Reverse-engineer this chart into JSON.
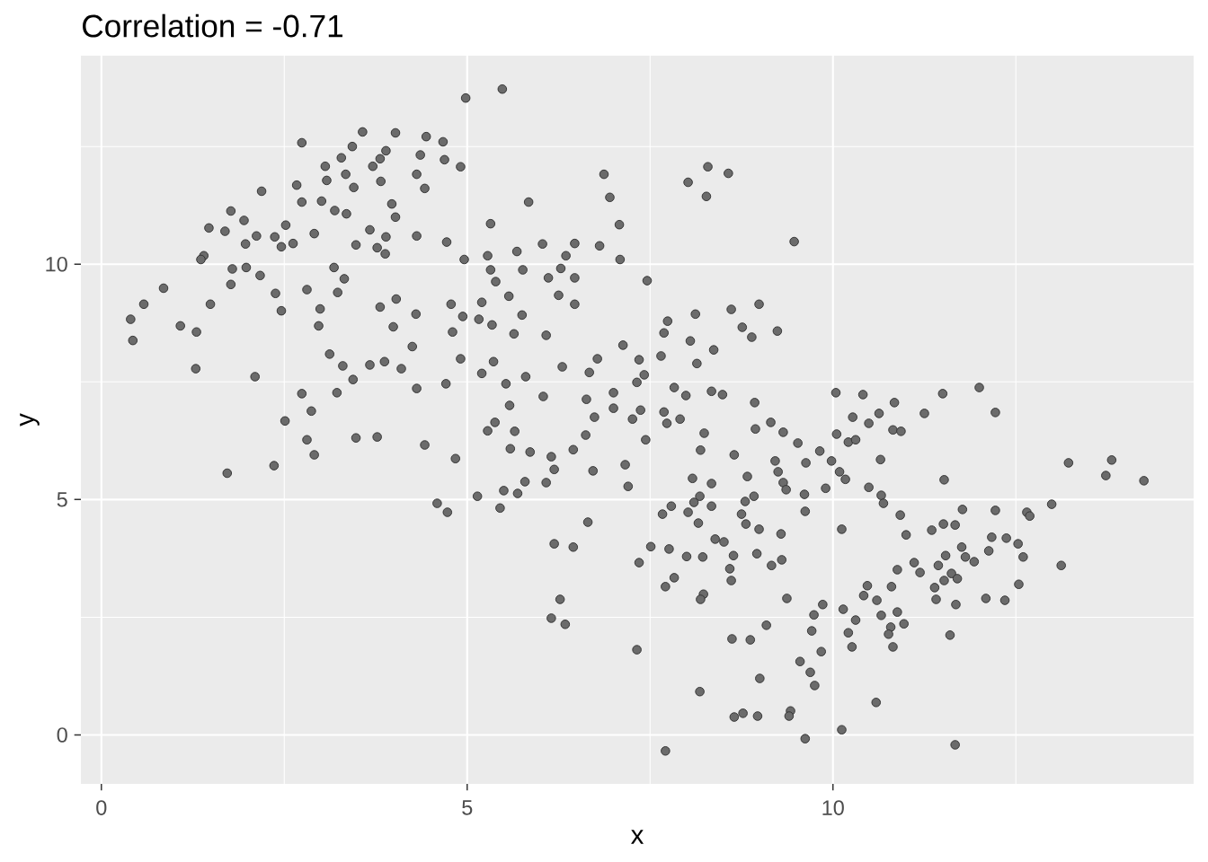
{
  "chart_data": {
    "type": "scatter",
    "title": "Correlation =  -0.71",
    "xlabel": "x",
    "ylabel": "y",
    "color": "#6b6b6b",
    "marker": "circle",
    "grid": true,
    "xlim": [
      -0.28,
      14.93
    ],
    "ylim": [
      -1.04,
      14.43
    ],
    "xticks": [
      0,
      5,
      10
    ],
    "yticks": [
      0,
      5,
      10
    ],
    "x": [
      2.74,
      3.57,
      4.02,
      4.44,
      4.67,
      3.43,
      3.89,
      4.36,
      3.28,
      3.81,
      4.69,
      3.06,
      3.71,
      3.34,
      4.31,
      3.08,
      3.82,
      2.67,
      3.45,
      4.42,
      2.19,
      3.01,
      2.74,
      3.97,
      3.19,
      3.35,
      1.77,
      4.02,
      1.95,
      2.52,
      1.47,
      1.69,
      2.91,
      3.67,
      2.12,
      2.37,
      4.31,
      3.89,
      1.97,
      4.72,
      2.62,
      3.48,
      3.77,
      2.46,
      3.88,
      1.4,
      1.36,
      3.18,
      1.79,
      1.98,
      2.17,
      3.32,
      0.85,
      1.77,
      2.81,
      3.23,
      2.38,
      0.58,
      1.49,
      4.03,
      4.78,
      3.81,
      2.46,
      2.99,
      4.3,
      0.4,
      1.08,
      2.97,
      3.99,
      4.8,
      1.3,
      0.43,
      4.25,
      3.12,
      3.3,
      3.67,
      3.87,
      4.1,
      1.29,
      2.1,
      3.44,
      4.71,
      4.31,
      2.74,
      3.22,
      2.87,
      2.51,
      4.98,
      5.48,
      4.91,
      6.87,
      8.02,
      8.29,
      8.57,
      8.27,
      5.84,
      6.95,
      5.32,
      7.08,
      9.47,
      5.68,
      6.03,
      6.47,
      6.81,
      5.28,
      6.35,
      7.09,
      4.96,
      5.32,
      5.76,
      6.28,
      5.39,
      6.11,
      6.47,
      7.46,
      6.25,
      5.57,
      5.2,
      6.47,
      8.99,
      8.12,
      8.61,
      4.94,
      5.16,
      5.75,
      7.74,
      5.34,
      5.64,
      6.08,
      7.69,
      8.76,
      9.24,
      8.89,
      8.05,
      7.13,
      8.37,
      4.91,
      5.36,
      6.78,
      7.35,
      7.65,
      8.14,
      6.3,
      6.67,
      7.42,
      5.2,
      5.8,
      5.53,
      6.04,
      6.63,
      7.0,
      7.32,
      7.83,
      7.99,
      8.34,
      8.49,
      8.93,
      5.58,
      7.0,
      7.69,
      7.91,
      6.74,
      7.26,
      5.38,
      9.15,
      7.37,
      10.04,
      10.41,
      10.84,
      11.5,
      12.0,
      10.27,
      10.63,
      11.25,
      12.22,
      2.81,
      2.91,
      3.48,
      3.77,
      4.42,
      4.84,
      1.72,
      2.36,
      4.59,
      4.73,
      5.28,
      5.65,
      5.59,
      5.86,
      6.15,
      6.19,
      6.45,
      6.62,
      6.72,
      7.16,
      7.44,
      7.73,
      8.24,
      8.19,
      8.65,
      8.94,
      9.32,
      9.52,
      9.82,
      9.21,
      9.63,
      9.25,
      8.08,
      8.34,
      8.83,
      9.32,
      5.79,
      6.08,
      5.5,
      5.69,
      5.14,
      7.2,
      8.18,
      8.92,
      9.36,
      9.61,
      9.9,
      5.45,
      7.79,
      7.67,
      8.1,
      8.02,
      8.34,
      8.16,
      8.8,
      8.75,
      8.81,
      8.99,
      9.29,
      9.62,
      6.65,
      6.19,
      6.45,
      7.35,
      7.51,
      7.76,
      8.0,
      8.22,
      8.39,
      8.51,
      8.64,
      8.96,
      9.3,
      9.16,
      8.59,
      8.61,
      7.83,
      7.71,
      8.23,
      8.19,
      9.37,
      6.27,
      6.15,
      6.34,
      9.74,
      9.86,
      9.09,
      8.62,
      8.87,
      9.71,
      7.32,
      9.84,
      9.55,
      9.69,
      9.0,
      9.75,
      8.18,
      8.65,
      8.77,
      8.97,
      9.42,
      9.4,
      9.62,
      7.71,
      10.05,
      10.21,
      10.31,
      10.49,
      10.82,
      10.93,
      9.98,
      10.65,
      10.09,
      10.17,
      10.49,
      10.66,
      10.69,
      11.52,
      13.22,
      13.81,
      13.73,
      14.25,
      12.99,
      12.65,
      12.69,
      12.22,
      11.77,
      10.92,
      10.12,
      11.0,
      11.35,
      11.51,
      11.67,
      12.17,
      12.37,
      12.53,
      12.13,
      12.6,
      11.76,
      11.54,
      11.81,
      11.44,
      11.93,
      13.12,
      11.11,
      10.88,
      11.19,
      11.62,
      11.7,
      11.52,
      12.54,
      10.47,
      10.8,
      11.39,
      10.42,
      10.6,
      11.41,
      11.68,
      12.09,
      12.35,
      10.14,
      10.31,
      10.66,
      10.88,
      10.97,
      10.79,
      10.21,
      10.76,
      10.26,
      10.82,
      11.6,
      10.59,
      10.12,
      11.67
    ],
    "values": [
      12.58,
      12.81,
      12.79,
      12.71,
      12.6,
      12.5,
      12.41,
      12.32,
      12.26,
      12.24,
      12.22,
      12.08,
      12.08,
      11.91,
      11.91,
      11.78,
      11.76,
      11.68,
      11.63,
      11.61,
      11.55,
      11.34,
      11.32,
      11.28,
      11.14,
      11.07,
      11.13,
      11.0,
      10.93,
      10.83,
      10.77,
      10.7,
      10.65,
      10.73,
      10.6,
      10.58,
      10.6,
      10.58,
      10.43,
      10.47,
      10.44,
      10.41,
      10.35,
      10.37,
      10.22,
      10.18,
      10.1,
      9.93,
      9.9,
      9.93,
      9.76,
      9.69,
      9.49,
      9.57,
      9.46,
      9.4,
      9.38,
      9.15,
      9.15,
      9.26,
      9.15,
      9.09,
      9.01,
      9.05,
      8.94,
      8.83,
      8.69,
      8.69,
      8.67,
      8.56,
      8.56,
      8.38,
      8.25,
      8.09,
      7.84,
      7.86,
      7.93,
      7.78,
      7.78,
      7.61,
      7.55,
      7.46,
      7.36,
      7.25,
      7.27,
      6.88,
      6.67,
      13.53,
      13.72,
      12.07,
      11.91,
      11.74,
      12.07,
      11.93,
      11.44,
      11.32,
      11.42,
      10.86,
      10.84,
      10.48,
      10.27,
      10.43,
      10.44,
      10.39,
      10.18,
      10.18,
      10.1,
      10.1,
      9.88,
      9.88,
      9.91,
      9.63,
      9.71,
      9.71,
      9.65,
      9.34,
      9.32,
      9.19,
      9.15,
      9.15,
      8.94,
      9.04,
      8.89,
      8.83,
      8.92,
      8.79,
      8.71,
      8.52,
      8.49,
      8.54,
      8.66,
      8.58,
      8.45,
      8.37,
      8.28,
      8.18,
      7.99,
      7.93,
      7.99,
      7.97,
      8.05,
      7.89,
      7.82,
      7.7,
      7.65,
      7.68,
      7.61,
      7.46,
      7.19,
      7.13,
      7.27,
      7.49,
      7.38,
      7.21,
      7.3,
      7.23,
      7.06,
      7.0,
      6.94,
      6.86,
      6.71,
      6.75,
      6.71,
      6.64,
      6.64,
      6.9,
      7.27,
      7.23,
      7.06,
      7.25,
      7.38,
      6.75,
      6.83,
      6.83,
      6.85,
      6.27,
      5.95,
      6.31,
      6.33,
      6.16,
      5.87,
      5.56,
      5.72,
      4.92,
      4.73,
      6.46,
      6.45,
      6.08,
      6.01,
      5.91,
      5.64,
      6.06,
      6.37,
      5.61,
      5.74,
      6.27,
      6.62,
      6.41,
      6.05,
      5.95,
      6.5,
      6.43,
      6.2,
      6.03,
      5.82,
      5.78,
      5.59,
      5.45,
      5.34,
      5.49,
      5.36,
      5.38,
      5.36,
      5.19,
      5.13,
      5.07,
      5.28,
      5.07,
      5.07,
      5.21,
      5.11,
      5.24,
      4.82,
      4.86,
      4.69,
      4.94,
      4.73,
      4.86,
      4.5,
      4.96,
      4.69,
      4.48,
      4.37,
      4.27,
      4.75,
      4.52,
      4.06,
      3.99,
      3.66,
      4.0,
      3.95,
      3.79,
      3.78,
      4.16,
      4.1,
      3.81,
      3.85,
      3.72,
      3.6,
      3.53,
      3.28,
      3.34,
      3.15,
      2.99,
      2.88,
      2.9,
      2.88,
      2.48,
      2.35,
      2.55,
      2.77,
      2.33,
      2.04,
      2.02,
      2.21,
      1.81,
      1.77,
      1.56,
      1.33,
      1.2,
      1.05,
      0.92,
      0.38,
      0.46,
      0.4,
      0.51,
      0.4,
      -0.08,
      -0.34,
      6.39,
      6.22,
      6.27,
      6.62,
      6.48,
      6.45,
      5.82,
      5.85,
      5.59,
      5.43,
      5.26,
      5.09,
      4.92,
      5.42,
      5.78,
      5.84,
      5.51,
      5.4,
      4.9,
      4.73,
      4.65,
      4.77,
      4.79,
      4.67,
      4.37,
      4.25,
      4.35,
      4.48,
      4.46,
      4.2,
      4.18,
      4.06,
      3.91,
      3.78,
      3.99,
      3.81,
      3.78,
      3.6,
      3.68,
      3.6,
      3.66,
      3.51,
      3.45,
      3.43,
      3.32,
      3.28,
      3.2,
      3.17,
      3.15,
      3.13,
      2.96,
      2.86,
      2.88,
      2.77,
      2.9,
      2.86,
      2.67,
      2.44,
      2.54,
      2.61,
      2.36,
      2.29,
      2.17,
      2.14,
      1.87,
      1.87,
      2.12,
      0.69,
      0.11,
      -0.21
    ]
  }
}
